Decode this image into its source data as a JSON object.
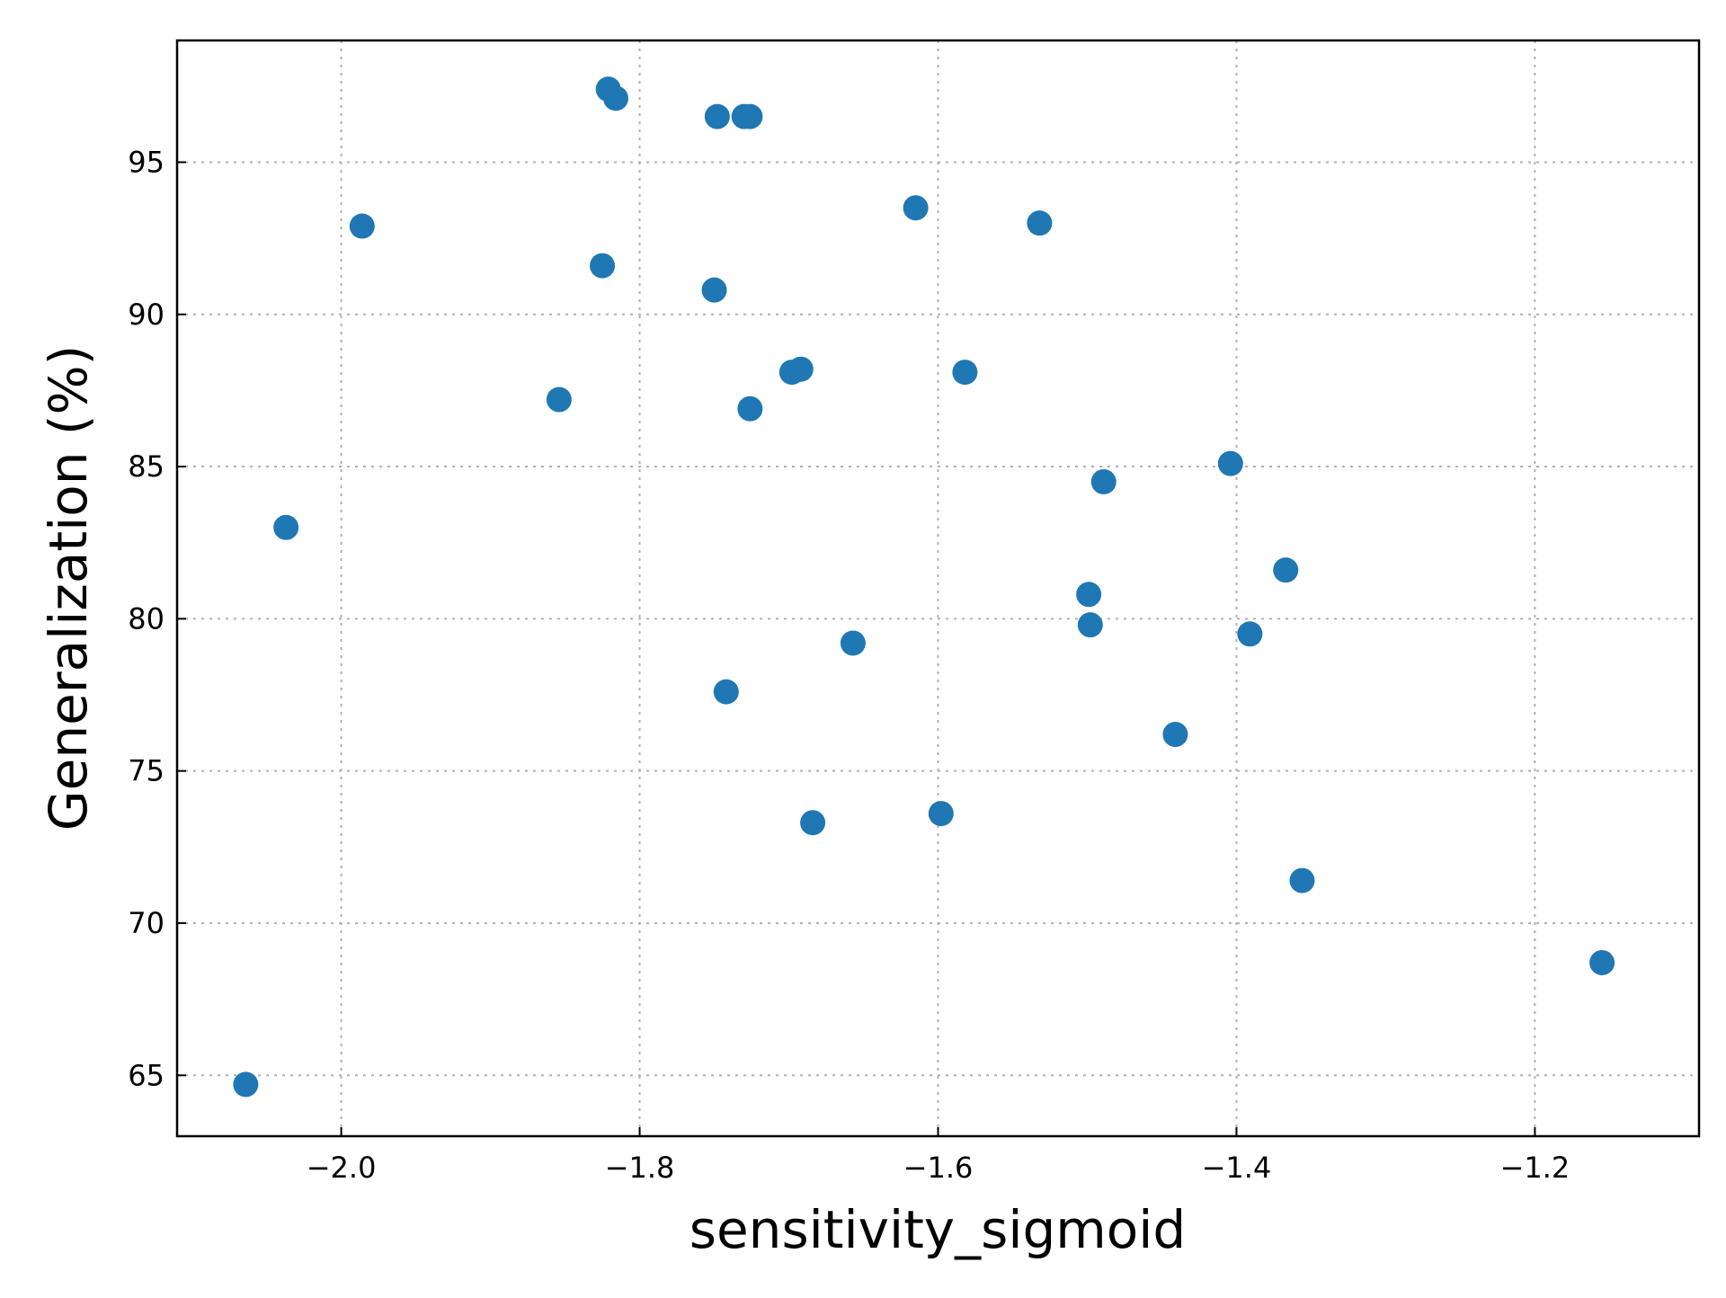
{
  "chart_data": {
    "type": "scatter",
    "xlabel": "sensitivity_sigmoid",
    "ylabel": "Generalization (%)",
    "xlim": [
      -2.11,
      -1.09
    ],
    "ylim": [
      63.0,
      99.0
    ],
    "xticks": [
      -2.0,
      -1.8,
      -1.6,
      -1.4,
      -1.2
    ],
    "xtick_labels": [
      "−2.0",
      "−1.8",
      "−1.6",
      "−1.4",
      "−1.2"
    ],
    "yticks": [
      65,
      70,
      75,
      80,
      85,
      90,
      95
    ],
    "ytick_labels": [
      "65",
      "70",
      "75",
      "80",
      "85",
      "90",
      "95"
    ],
    "grid": true,
    "marker_color": "#1f77b4",
    "points": [
      {
        "x": -2.064,
        "y": 64.7
      },
      {
        "x": -2.037,
        "y": 83.0
      },
      {
        "x": -1.986,
        "y": 92.9
      },
      {
        "x": -1.854,
        "y": 87.2
      },
      {
        "x": -1.825,
        "y": 91.6
      },
      {
        "x": -1.821,
        "y": 97.4
      },
      {
        "x": -1.816,
        "y": 97.1
      },
      {
        "x": -1.748,
        "y": 96.5
      },
      {
        "x": -1.75,
        "y": 90.8
      },
      {
        "x": -1.742,
        "y": 77.6
      },
      {
        "x": -1.73,
        "y": 96.5
      },
      {
        "x": -1.726,
        "y": 96.5
      },
      {
        "x": -1.726,
        "y": 86.9
      },
      {
        "x": -1.698,
        "y": 88.1
      },
      {
        "x": -1.692,
        "y": 88.2
      },
      {
        "x": -1.684,
        "y": 73.3
      },
      {
        "x": -1.657,
        "y": 79.2
      },
      {
        "x": -1.615,
        "y": 93.5
      },
      {
        "x": -1.598,
        "y": 73.6
      },
      {
        "x": -1.582,
        "y": 88.1
      },
      {
        "x": -1.532,
        "y": 93.0
      },
      {
        "x": -1.499,
        "y": 80.8
      },
      {
        "x": -1.498,
        "y": 79.8
      },
      {
        "x": -1.489,
        "y": 84.5
      },
      {
        "x": -1.441,
        "y": 76.2
      },
      {
        "x": -1.404,
        "y": 85.1
      },
      {
        "x": -1.391,
        "y": 79.5
      },
      {
        "x": -1.367,
        "y": 81.6
      },
      {
        "x": -1.356,
        "y": 71.4
      },
      {
        "x": -1.155,
        "y": 68.7
      }
    ]
  }
}
